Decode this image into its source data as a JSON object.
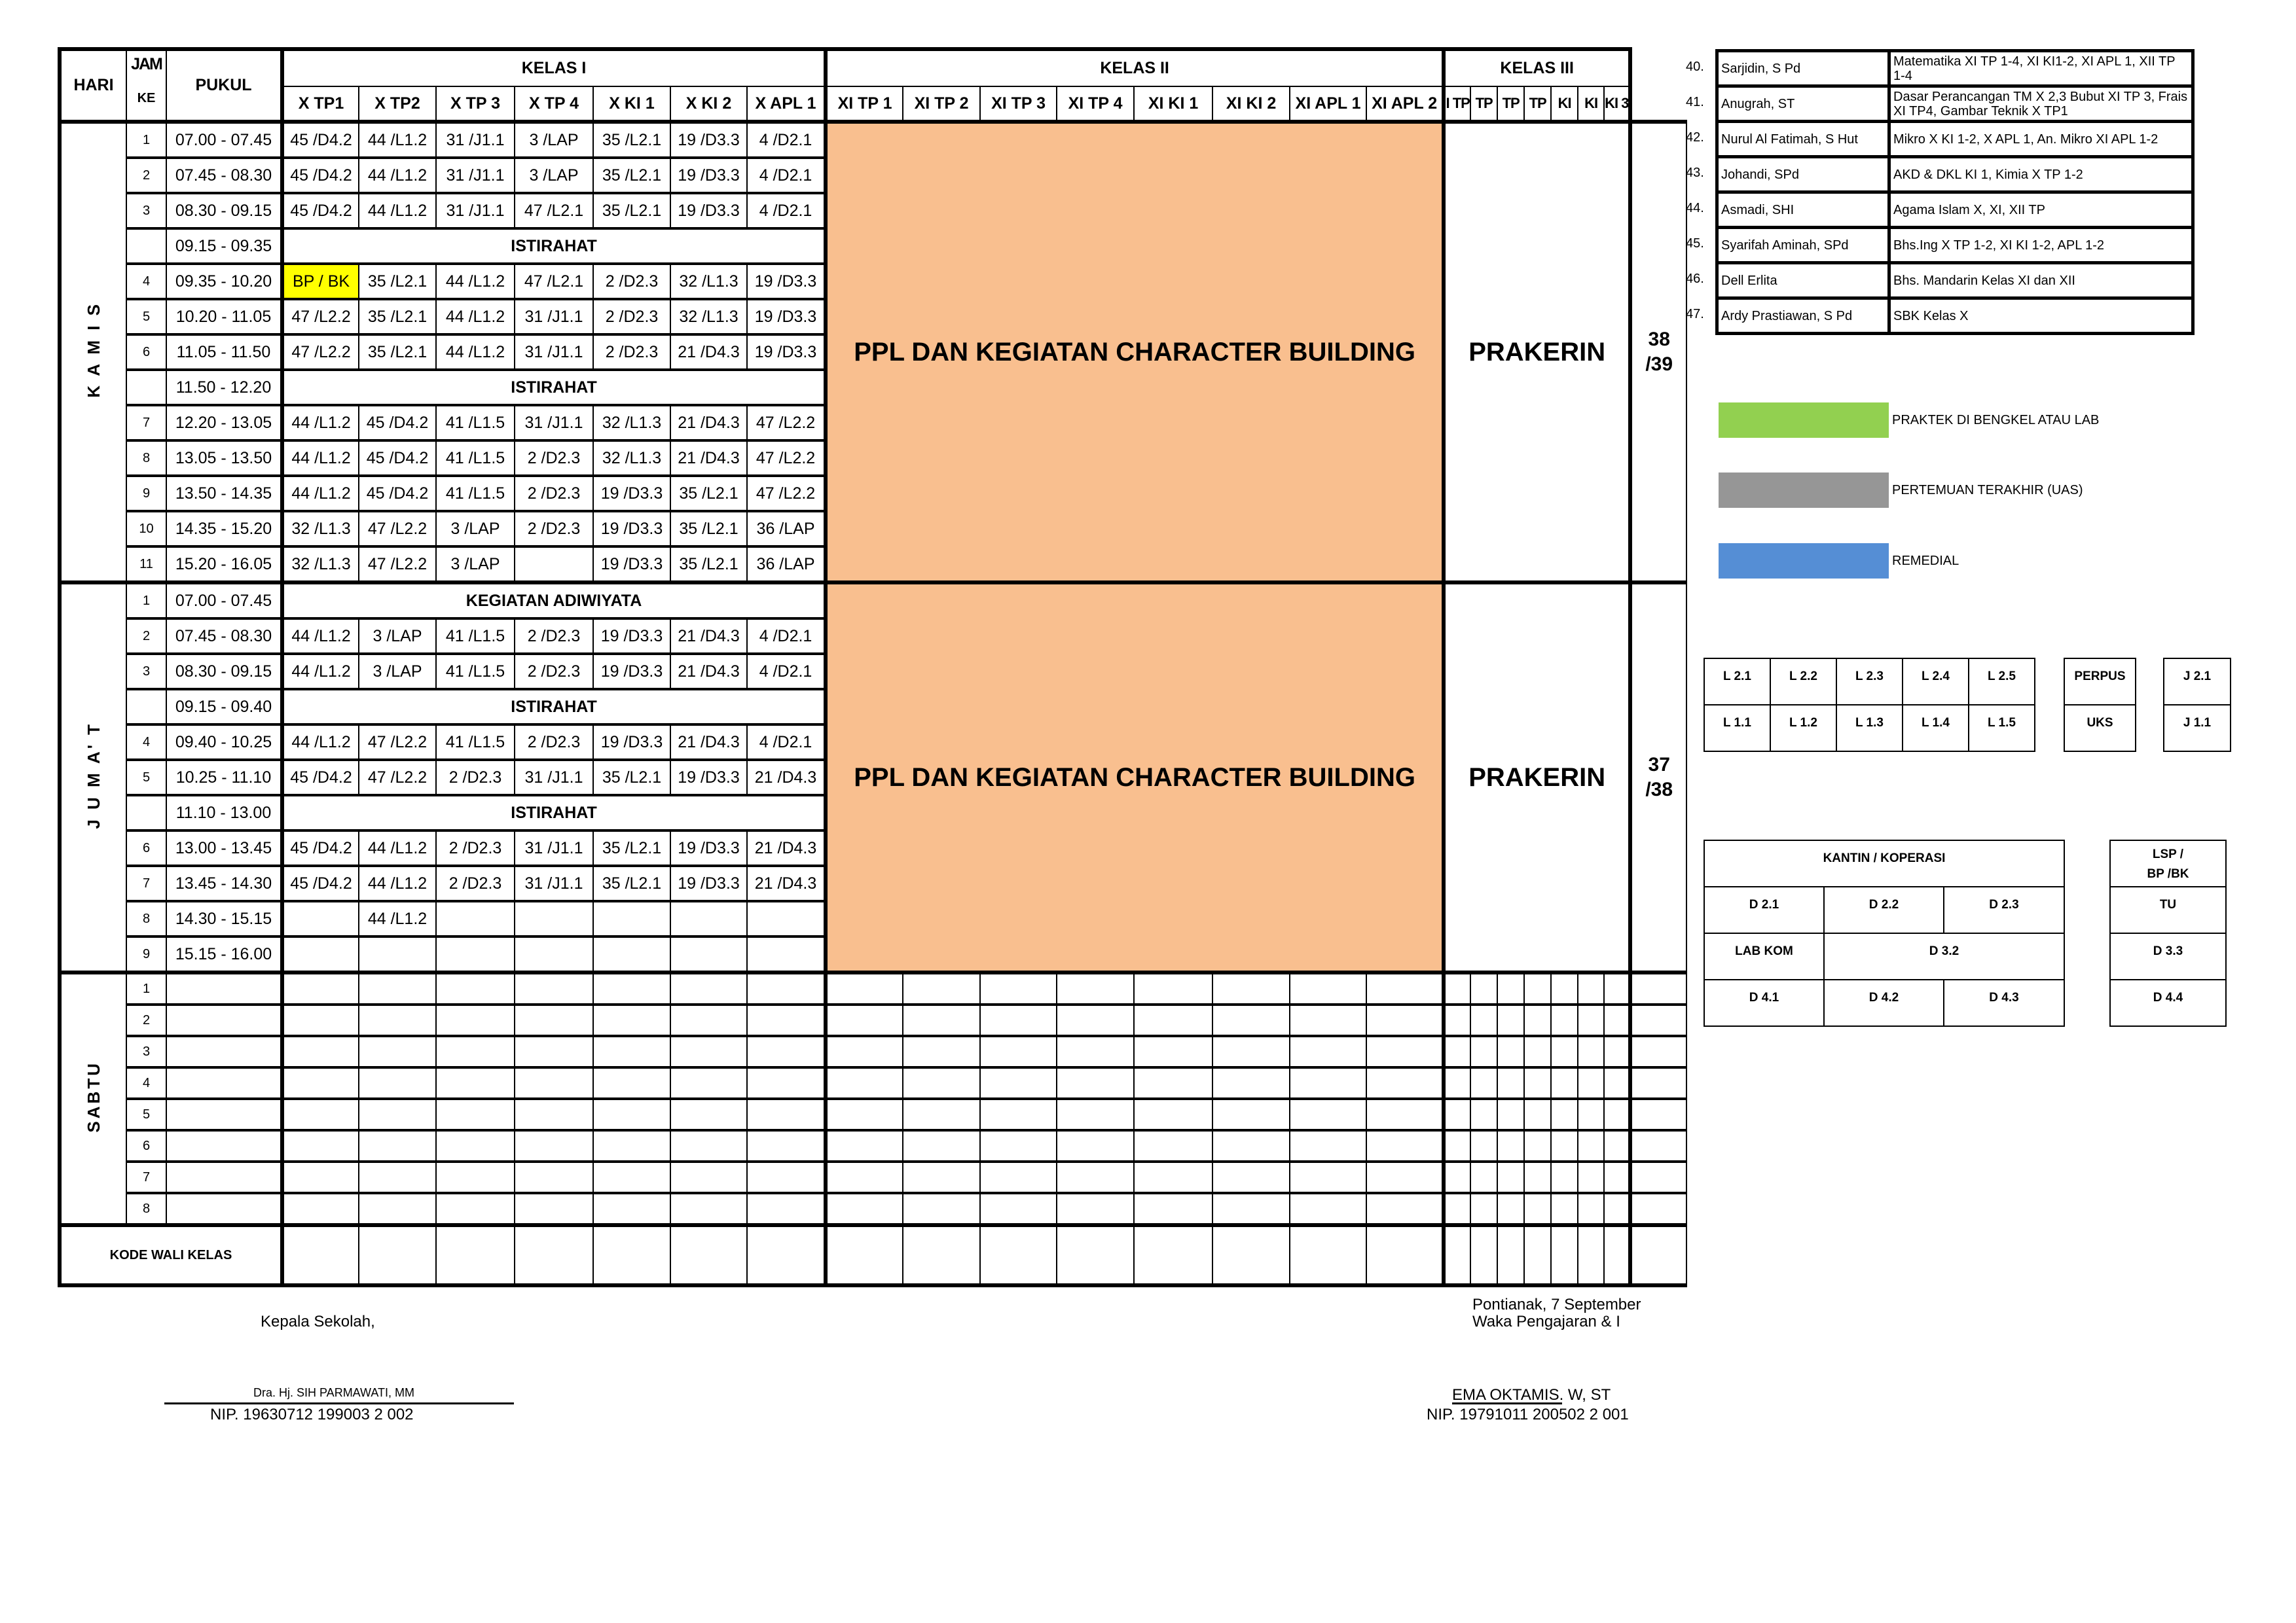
{
  "header": {
    "hari": "HARI",
    "jam": "JAM",
    "ke": "KE",
    "pukul": "PUKUL",
    "kelas1": "KELAS I",
    "kelas2": "KELAS II",
    "kelas3": "KELAS III",
    "kelas1_cols": [
      "X TP1",
      "X TP2",
      "X TP 3",
      "X TP 4",
      "X KI 1",
      "X KI 2",
      "X APL 1"
    ],
    "kelas2_cols": [
      "XI TP 1",
      "XI TP 2",
      "XI TP 3",
      "XI TP 4",
      "XI KI 1",
      "XI KI 2",
      "XI APL 1",
      "XI APL 2"
    ],
    "kelas3_cols": [
      "I TP",
      "TP",
      "TP",
      "TP",
      "KI",
      "KI",
      "KI 3"
    ]
  },
  "colors": {
    "ppl_block": "#f9bf8f",
    "highlight": "#ffff00",
    "praktek": "#92d050",
    "uas": "#969696",
    "remedial": "#558ed5"
  },
  "days": [
    {
      "name": "K A M I S",
      "kelas2_text": "PPL DAN KEGIATAN CHARACTER BUILDING",
      "kelas3_text": "PRAKERIN",
      "extra": "38 /39",
      "rows": [
        {
          "ke": "1",
          "time": "07.00 - 07.45",
          "cells": [
            "45 /D4.2",
            "44 /L1.2",
            "31 /J1.1",
            "3 /LAP",
            "35 /L2.1",
            "19 /D3.3",
            "4 /D2.1"
          ]
        },
        {
          "ke": "2",
          "time": "07.45 - 08.30",
          "cells": [
            "45 /D4.2",
            "44 /L1.2",
            "31 /J1.1",
            "3 /LAP",
            "35 /L2.1",
            "19 /D3.3",
            "4 /D2.1"
          ]
        },
        {
          "ke": "3",
          "time": "08.30 - 09.15",
          "cells": [
            "45 /D4.2",
            "44 /L1.2",
            "31 /J1.1",
            "47 /L2.1",
            "35 /L2.1",
            "19 /D3.3",
            "4 /D2.1"
          ]
        },
        {
          "ke": "",
          "time": "09.15 - 09.35",
          "merged": "ISTIRAHAT"
        },
        {
          "ke": "4",
          "time": "09.35 - 10.20",
          "cells": [
            "BP / BK",
            "35 /L2.1",
            "44 /L1.2",
            "47 /L2.1",
            "2 /D2.3",
            "32 /L1.3",
            "19 /D3.3"
          ],
          "highlight": [
            0
          ]
        },
        {
          "ke": "5",
          "time": "10.20 - 11.05",
          "cells": [
            "47 /L2.2",
            "35 /L2.1",
            "44 /L1.2",
            "31 /J1.1",
            "2 /D2.3",
            "32 /L1.3",
            "19 /D3.3"
          ]
        },
        {
          "ke": "6",
          "time": "11.05 - 11.50",
          "cells": [
            "47 /L2.2",
            "35 /L2.1",
            "44 /L1.2",
            "31 /J1.1",
            "2 /D2.3",
            "21 /D4.3",
            "19 /D3.3"
          ]
        },
        {
          "ke": "",
          "time": "11.50 - 12.20",
          "merged": "ISTIRAHAT"
        },
        {
          "ke": "7",
          "time": "12.20 - 13.05",
          "cells": [
            "44 /L1.2",
            "45 /D4.2",
            "41 /L1.5",
            "31 /J1.1",
            "32 /L1.3",
            "21 /D4.3",
            "47 /L2.2"
          ]
        },
        {
          "ke": "8",
          "time": "13.05 - 13.50",
          "cells": [
            "44 /L1.2",
            "45 /D4.2",
            "41 /L1.5",
            "2 /D2.3",
            "32 /L1.3",
            "21 /D4.3",
            "47 /L2.2"
          ]
        },
        {
          "ke": "9",
          "time": "13.50 - 14.35",
          "cells": [
            "44 /L1.2",
            "45 /D4.2",
            "41 /L1.5",
            "2 /D2.3",
            "19 /D3.3",
            "35 /L2.1",
            "47 /L2.2"
          ]
        },
        {
          "ke": "10",
          "time": "14.35 - 15.20",
          "cells": [
            "32 /L1.3",
            "47 /L2.2",
            "3 /LAP",
            "2 /D2.3",
            "19 /D3.3",
            "35 /L2.1",
            "36 /LAP"
          ]
        },
        {
          "ke": "11",
          "time": "15.20 - 16.05",
          "cells": [
            "32 /L1.3",
            "47 /L2.2",
            "3 /LAP",
            "",
            "19 /D3.3",
            "35 /L2.1",
            "36 /LAP"
          ]
        }
      ]
    },
    {
      "name": "J U M A' T",
      "kelas2_text": "PPL DAN KEGIATAN CHARACTER BUILDING",
      "kelas3_text": "PRAKERIN",
      "extra": "37 /38",
      "rows": [
        {
          "ke": "1",
          "time": "07.00 - 07.45",
          "merged": "KEGIATAN ADIWIYATA"
        },
        {
          "ke": "2",
          "time": "07.45 - 08.30",
          "cells": [
            "44 /L1.2",
            "3 /LAP",
            "41 /L1.5",
            "2 /D2.3",
            "19 /D3.3",
            "21 /D4.3",
            "4 /D2.1"
          ]
        },
        {
          "ke": "3",
          "time": "08.30 - 09.15",
          "cells": [
            "44 /L1.2",
            "3 /LAP",
            "41 /L1.5",
            "2 /D2.3",
            "19 /D3.3",
            "21 /D4.3",
            "4 /D2.1"
          ]
        },
        {
          "ke": "",
          "time": "09.15 - 09.40",
          "merged": "ISTIRAHAT"
        },
        {
          "ke": "4",
          "time": "09.40 - 10.25",
          "cells": [
            "44 /L1.2",
            "47 /L2.2",
            "41 /L1.5",
            "2 /D2.3",
            "19 /D3.3",
            "21 /D4.3",
            "4 /D2.1"
          ]
        },
        {
          "ke": "5",
          "time": "10.25 - 11.10",
          "cells": [
            "45 /D4.2",
            "47 /L2.2",
            "2 /D2.3",
            "31 /J1.1",
            "35 /L2.1",
            "19 /D3.3",
            "21 /D4.3"
          ]
        },
        {
          "ke": "",
          "time": "11.10 - 13.00",
          "merged": "ISTIRAHAT"
        },
        {
          "ke": "6",
          "time": "13.00 - 13.45",
          "cells": [
            "45 /D4.2",
            "44 /L1.2",
            "2 /D2.3",
            "31 /J1.1",
            "35 /L2.1",
            "19 /D3.3",
            "21 /D4.3"
          ]
        },
        {
          "ke": "7",
          "time": "13.45 - 14.30",
          "cells": [
            "45 /D4.2",
            "44 /L1.2",
            "2 /D2.3",
            "31 /J1.1",
            "35 /L2.1",
            "19 /D3.3",
            "21 /D4.3"
          ]
        },
        {
          "ke": "8",
          "time": "14.30 - 15.15",
          "cells": [
            "",
            "44 /L1.2",
            "",
            "",
            "",
            "",
            ""
          ]
        },
        {
          "ke": "9",
          "time": "15.15 - 16.00",
          "cells": [
            "",
            "",
            "",
            "",
            "",
            "",
            ""
          ]
        }
      ]
    },
    {
      "name": "SABTU",
      "empty": true,
      "rows": [
        {
          "ke": "1",
          "time": ""
        },
        {
          "ke": "2",
          "time": ""
        },
        {
          "ke": "3",
          "time": ""
        },
        {
          "ke": "4",
          "time": ""
        },
        {
          "ke": "5",
          "time": ""
        },
        {
          "ke": "6",
          "time": ""
        },
        {
          "ke": "7",
          "time": ""
        },
        {
          "ke": "8",
          "time": ""
        }
      ]
    }
  ],
  "kode_wali_label": "KODE WALI KELAS",
  "teachers": [
    {
      "no": "40.",
      "name": "Sarjidin, S Pd",
      "subject": "Matematika XI TP 1-4, XI KI1-2, XI APL 1, XII TP 1-4"
    },
    {
      "no": "41.",
      "name": "Anugrah, ST",
      "subject": "Dasar Perancangan TM X 2,3 Bubut XI TP 3, Frais XI TP4, Gambar Teknik X TP1"
    },
    {
      "no": "42.",
      "name": "Nurul Al Fatimah, S Hut",
      "subject": "Mikro X KI 1-2, X APL 1, An. Mikro XI APL 1-2"
    },
    {
      "no": "43.",
      "name": "Johandi, SPd",
      "subject": "AKD & DKL KI 1, Kimia X TP 1-2"
    },
    {
      "no": "44.",
      "name": "Asmadi, SHI",
      "subject": "Agama Islam X, XI, XII TP"
    },
    {
      "no": "45.",
      "name": "Syarifah Aminah, SPd",
      "subject": "Bhs.Ing X TP 1-2,  XI KI 1-2, APL 1-2"
    },
    {
      "no": "46.",
      "name": "Dell Erlita",
      "subject": "Bhs. Mandarin Kelas XI dan XII"
    },
    {
      "no": "47.",
      "name": "Ardy Prastiawan, S Pd",
      "subject": "SBK Kelas X"
    }
  ],
  "legend": [
    {
      "label": "PRAKTEK DI BENGKEL ATAU LAB",
      "color": "#92d050"
    },
    {
      "label": "PERTEMUAN TERAKHIR (UAS)",
      "color": "#969696"
    },
    {
      "label": "REMEDIAL",
      "color": "#558ed5"
    }
  ],
  "rooms": {
    "labs_top": [
      "L 2.1",
      "L 2.2",
      "L 2.3",
      "L 2.4",
      "L 2.5"
    ],
    "labs_bottom": [
      "L 1.1",
      "L 1.2",
      "L 1.3",
      "L 1.4",
      "L 1.5"
    ],
    "perpus": "PERPUS",
    "uks": "UKS",
    "j21": "J 2.1",
    "j11": "J 1.1",
    "kantin": "KANTIN / KOPERASI",
    "d_row1": [
      "D 2.1",
      "D 2.2",
      "D 2.3"
    ],
    "labkom": "LAB KOM",
    "d32": "D 3.2",
    "d_row3": [
      "D 4.1",
      "D 4.2",
      "D 4.3"
    ],
    "lsp_line1": "LSP /",
    "lsp_line2": "BP /BK",
    "tu": "TU",
    "d33": "D 3.3",
    "d44": "D 4.4"
  },
  "signatures": {
    "left_title": "Kepala Sekolah,",
    "left_name": "Dra. Hj. SIH PARMAWATI, MM",
    "left_nip": "NIP. 19630712 199003 2 002",
    "right_place": "Pontianak, 7 September",
    "right_title": "Waka Pengajaran & I",
    "right_name": "EMA OKTAMIS. W, ST",
    "right_nip": "NIP. 19791011 200502 2 001"
  }
}
